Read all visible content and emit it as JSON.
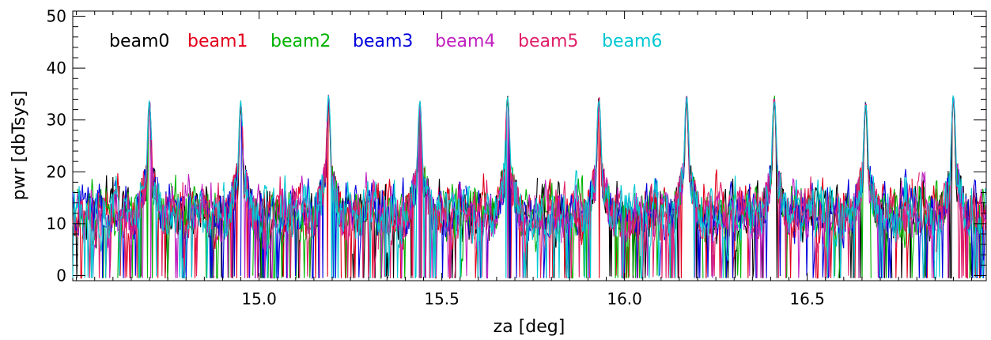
{
  "chart_data": {
    "type": "line",
    "title": "",
    "xlabel": "za [deg]",
    "ylabel": "pwr [dbTsys]",
    "xlim": [
      14.49,
      16.99
    ],
    "ylim": [
      -1,
      51
    ],
    "x_ticks": [
      15.0,
      15.5,
      16.0,
      16.5
    ],
    "x_tick_labels": [
      "15.0",
      "15.5",
      "16.0",
      "16.5"
    ],
    "y_ticks": [
      0,
      10,
      20,
      30,
      40,
      50
    ],
    "y_tick_labels": [
      "0",
      "10",
      "20",
      "30",
      "40",
      "50"
    ],
    "grid": false,
    "legend_position": "top-left",
    "peak_positions": [
      14.7,
      14.95,
      15.19,
      15.44,
      15.68,
      15.93,
      16.17,
      16.41,
      16.66,
      16.9
    ],
    "peak_values": [
      34,
      34,
      35,
      34,
      35,
      35,
      35,
      35,
      34,
      35
    ],
    "series": [
      {
        "name": "beam0",
        "color": "#000000"
      },
      {
        "name": "beam1",
        "color": "#e3001b"
      },
      {
        "name": "beam2",
        "color": "#00b300"
      },
      {
        "name": "beam3",
        "color": "#0000dd"
      },
      {
        "name": "beam4",
        "color": "#c020c0"
      },
      {
        "name": "beam5",
        "color": "#e0206a"
      },
      {
        "name": "beam6",
        "color": "#00c8d2"
      }
    ]
  }
}
